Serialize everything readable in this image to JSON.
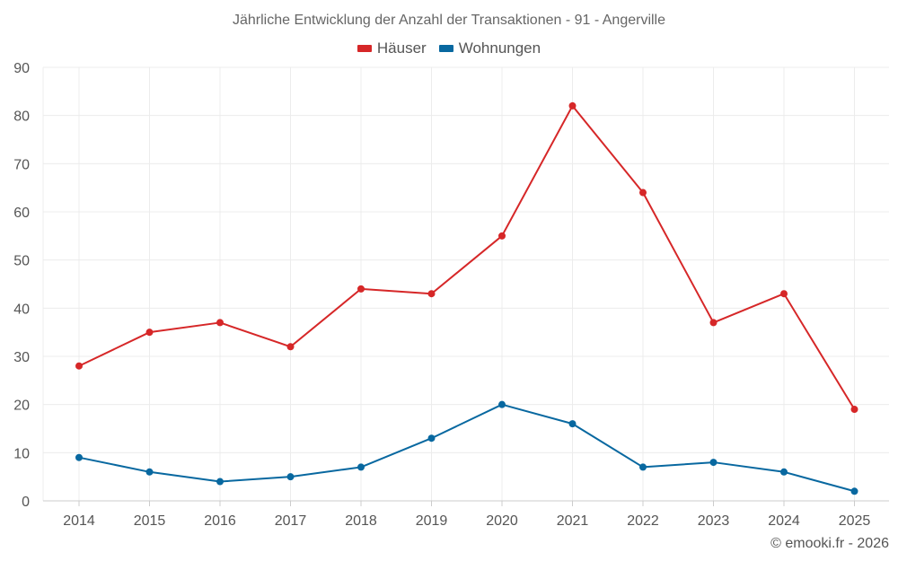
{
  "chart_data": {
    "type": "line",
    "title": "Jährliche Entwicklung der Anzahl der Transaktionen - 91 - Angerville",
    "categories": [
      "2014",
      "2015",
      "2016",
      "2017",
      "2018",
      "2019",
      "2020",
      "2021",
      "2022",
      "2023",
      "2024",
      "2025"
    ],
    "series": [
      {
        "name": "Häuser",
        "color": "#d62728",
        "values": [
          28,
          35,
          37,
          32,
          44,
          43,
          55,
          82,
          64,
          37,
          43,
          19
        ]
      },
      {
        "name": "Wohnungen",
        "color": "#0868a0",
        "values": [
          9,
          6,
          4,
          5,
          7,
          13,
          20,
          16,
          7,
          8,
          6,
          2
        ]
      }
    ],
    "ylim": [
      0,
      90
    ],
    "yticks": [
      0,
      10,
      20,
      30,
      40,
      50,
      60,
      70,
      80,
      90
    ],
    "xlabel": "",
    "ylabel": "",
    "grid": true,
    "legend_position": "top-center"
  },
  "credit": "© emooki.fr - 2026"
}
